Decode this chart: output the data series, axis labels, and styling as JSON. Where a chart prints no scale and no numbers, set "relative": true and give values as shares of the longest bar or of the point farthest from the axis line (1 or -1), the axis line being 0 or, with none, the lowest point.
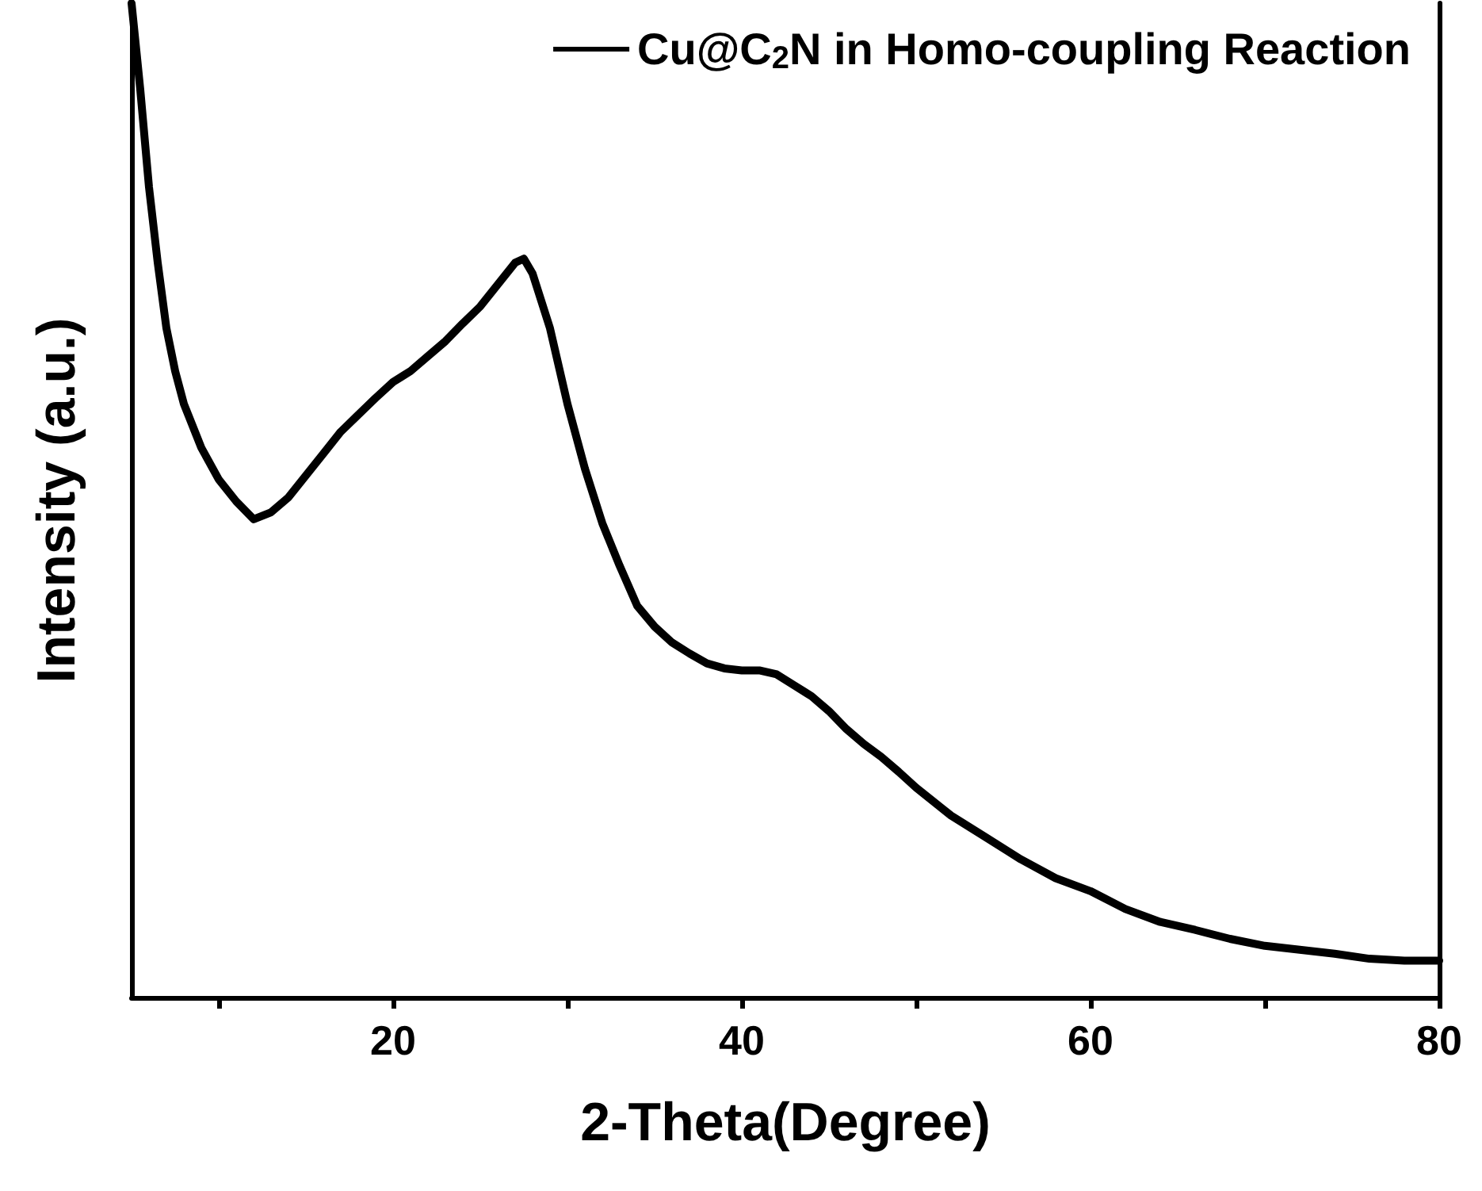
{
  "chart_data": {
    "type": "line",
    "relative": true,
    "xlabel": "2-Theta(Degree)",
    "ylabel": "Intensity (a.u.)",
    "xlim": [
      5,
      80
    ],
    "xticks": [
      {
        "value": 10,
        "label": null
      },
      20,
      {
        "value": 30,
        "label": null
      },
      40,
      {
        "value": 50,
        "label": null
      },
      60,
      {
        "value": 70,
        "label": null
      },
      80
    ],
    "legend": "top right",
    "marker": "none",
    "line_style": "solid",
    "grid": false,
    "x": [
      5,
      5.5,
      6,
      6.5,
      7,
      7.5,
      8,
      9,
      10,
      11,
      12,
      13,
      14,
      15,
      16,
      17,
      18,
      19,
      20,
      21,
      22,
      23,
      24,
      25,
      26,
      27,
      27.5,
      28,
      29,
      30,
      31,
      32,
      33,
      34,
      35,
      36,
      37,
      38,
      39,
      40,
      41,
      42,
      43,
      44,
      45,
      46,
      47,
      48,
      49,
      50,
      52,
      54,
      56,
      58,
      60,
      62,
      64,
      66,
      68,
      70,
      72,
      74,
      76,
      78,
      80
    ],
    "series": [
      {
        "name": "Cu@C$_{2}$N in Homo-coupling Reaction",
        "color": "#000000",
        "values": [
          1.0,
          0.913,
          0.815,
          0.739,
          0.673,
          0.63,
          0.597,
          0.553,
          0.521,
          0.499,
          0.481,
          0.488,
          0.503,
          0.525,
          0.547,
          0.569,
          0.586,
          0.603,
          0.619,
          0.63,
          0.645,
          0.66,
          0.678,
          0.695,
          0.717,
          0.739,
          0.743,
          0.728,
          0.673,
          0.597,
          0.532,
          0.477,
          0.434,
          0.394,
          0.373,
          0.357,
          0.346,
          0.336,
          0.331,
          0.329,
          0.329,
          0.325,
          0.314,
          0.303,
          0.288,
          0.27,
          0.255,
          0.242,
          0.227,
          0.211,
          0.183,
          0.161,
          0.139,
          0.12,
          0.107,
          0.089,
          0.076,
          0.068,
          0.059,
          0.052,
          0.048,
          0.044,
          0.039,
          0.037,
          0.037
        ]
      }
    ]
  }
}
